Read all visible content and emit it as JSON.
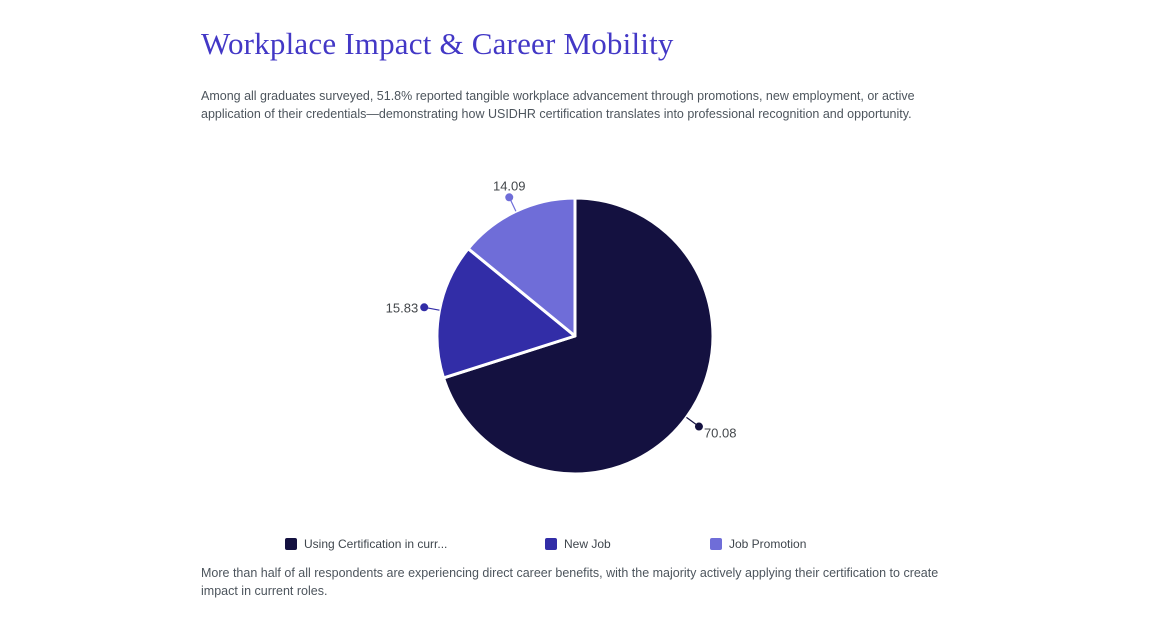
{
  "page": {
    "title": "Workplace Impact & Career Mobility",
    "intro": "Among all graduates surveyed, 51.8% reported tangible workplace advancement through promotions, new employment, or active application of their credentials—demonstrating how USIDHR certification translates into professional recognition and opportunity.",
    "footnote": "More than half of all respondents are experiencing direct career benefits, with the majority actively applying their certification to create impact in current roles."
  },
  "colors": {
    "background": "#ffffff",
    "title": "#4338c6",
    "body_text": "#4d555d",
    "label_text": "#43474b",
    "legend_text": "#3f464d",
    "separator": "#ffffff"
  },
  "chart_data": {
    "type": "pie",
    "title": "",
    "start_angle": "top",
    "direction": "clockwise",
    "legend_position": "bottom",
    "separator_stroke": 3,
    "slices": [
      {
        "label": "Using Certification in curr...",
        "value": 70.08,
        "value_label": "70.08",
        "color": "#141140"
      },
      {
        "label": "New Job",
        "value": 15.83,
        "value_label": "15.83",
        "color": "#322da7"
      },
      {
        "label": "Job Promotion",
        "value": 14.09,
        "value_label": "14.09",
        "color": "#6f6dd8"
      }
    ]
  }
}
